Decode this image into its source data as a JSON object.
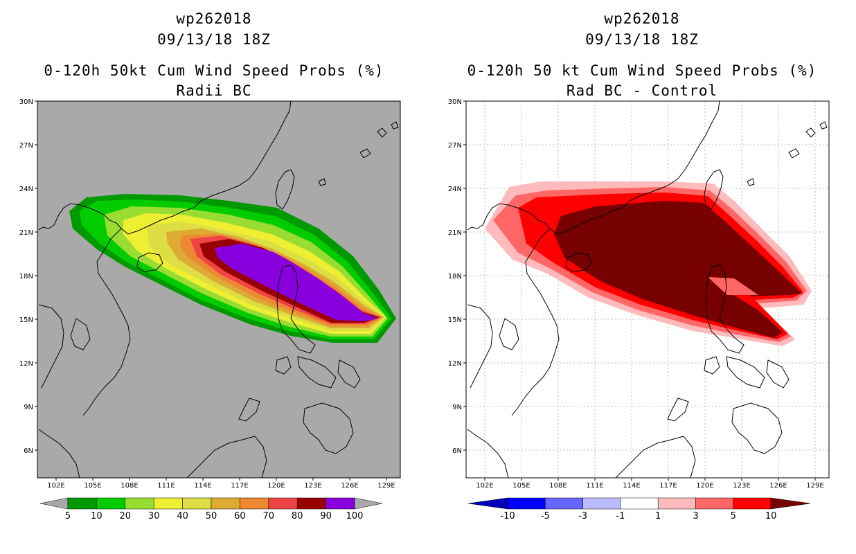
{
  "left": {
    "storm_id": "wp262018",
    "datetime": "09/13/18 18Z",
    "title": "0-120h 50kt Cum Wind Speed Probs (%)",
    "subtitle": "Radii BC",
    "colorbar": {
      "labels": [
        "5",
        "10",
        "20",
        "30",
        "40",
        "50",
        "60",
        "70",
        "80",
        "90",
        "100"
      ],
      "colors": [
        "#009900",
        "#00cc00",
        "#99dd33",
        "#eeee33",
        "#dddd44",
        "#ddaa33",
        "#ee8833",
        "#ee4444",
        "#990000",
        "#8800dd"
      ]
    }
  },
  "right": {
    "storm_id": "wp262018",
    "datetime": "09/13/18 18Z",
    "title": "0-120h 50 kt Cum Wind Speed Probs (%)",
    "subtitle": "Rad BC - Control",
    "colorbar": {
      "labels": [
        "-10",
        "-5",
        "-3",
        "-1",
        "1",
        "3",
        "5",
        "10"
      ],
      "colors": [
        "#0000bb",
        "#0000ff",
        "#6666ff",
        "#bbbbff",
        "#ffffff",
        "#ffbbbb",
        "#ff6666",
        "#ff0000",
        "#770000"
      ]
    }
  },
  "axes": {
    "lat_labels": [
      "30N",
      "27N",
      "24N",
      "21N",
      "18N",
      "15N",
      "12N",
      "9N",
      "6N"
    ],
    "lon_labels": [
      "102E",
      "105E",
      "108E",
      "111E",
      "114E",
      "117E",
      "120E",
      "123E",
      "126E",
      "129E"
    ]
  },
  "colors": {
    "land_bg": "#a9a9a9",
    "coast": "#000000"
  }
}
